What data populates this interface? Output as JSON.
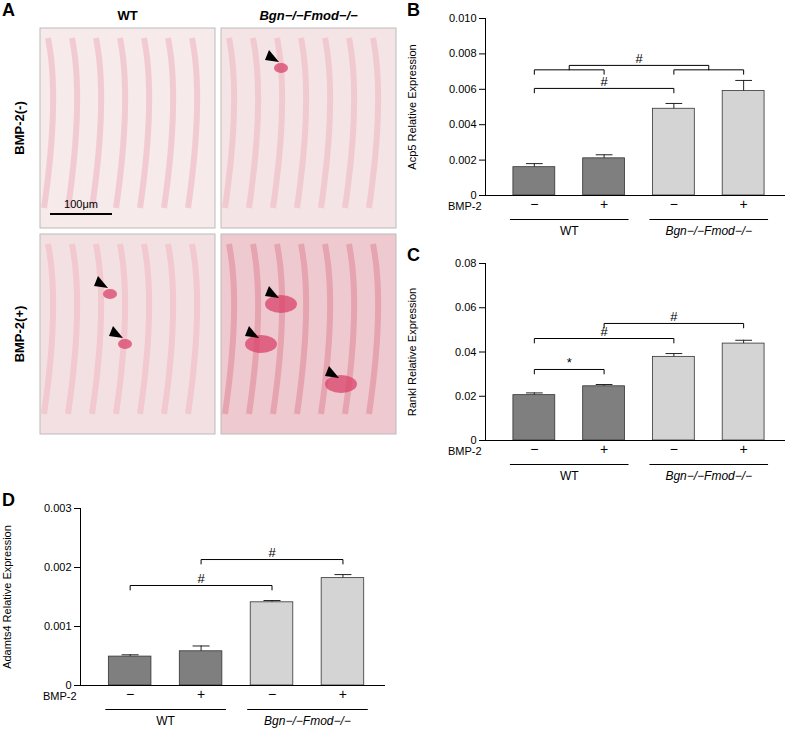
{
  "image_panel": {
    "panel": "A",
    "columns": [
      "WT",
      "Bgn−/−Fmod−/−"
    ],
    "rows": [
      "BMP-2(-)",
      "BMP-2(+)"
    ],
    "scale_bar": "100μm"
  },
  "chart_data": [
    {
      "type": "bar",
      "panel": "B",
      "y_label": "Acp5 Relative Expression",
      "x_label": "BMP-2",
      "categories": [
        "−",
        "+",
        "−",
        "+"
      ],
      "groups": [
        {
          "name": "WT",
          "indices": [
            0,
            1
          ]
        },
        {
          "name": "Bgn−/−Fmod−/−",
          "indices": [
            2,
            3
          ]
        }
      ],
      "values": [
        0.0016,
        0.0021,
        0.0049,
        0.0059
      ],
      "errors": [
        0.0002,
        0.0002,
        0.0003,
        0.0006
      ],
      "colors": [
        "#7f7f7f",
        "#7f7f7f",
        "#d4d4d4",
        "#d4d4d4"
      ],
      "significance": [
        {
          "from": [
            0
          ],
          "to": [
            2
          ],
          "label": "#"
        },
        {
          "from": [
            0,
            1
          ],
          "to": [
            2,
            3
          ],
          "label": "#"
        }
      ],
      "ylim": [
        0,
        0.01
      ],
      "yticks": [
        0,
        0.002,
        0.004,
        0.006,
        0.008,
        {
          "value": 0.01,
          "label": "0.010"
        }
      ]
    },
    {
      "type": "bar",
      "panel": "C",
      "y_label": "Rankl Relative Expression",
      "x_label": "BMP-2",
      "categories": [
        "−",
        "+",
        "−",
        "+"
      ],
      "groups": [
        {
          "name": "WT",
          "indices": [
            0,
            1
          ]
        },
        {
          "name": "Bgn−/−Fmod−/−",
          "indices": [
            2,
            3
          ]
        }
      ],
      "values": [
        0.0205,
        0.0245,
        0.0378,
        0.0438
      ],
      "errors": [
        0.001,
        0.0008,
        0.0015,
        0.0015
      ],
      "colors": [
        "#7f7f7f",
        "#7f7f7f",
        "#d4d4d4",
        "#d4d4d4"
      ],
      "significance": [
        {
          "from": [
            0
          ],
          "to": [
            1
          ],
          "label": "*"
        },
        {
          "from": [
            0
          ],
          "to": [
            2
          ],
          "label": "#"
        },
        {
          "from": [
            1
          ],
          "to": [
            3
          ],
          "label": "#"
        }
      ],
      "ylim": [
        0,
        0.08
      ],
      "yticks": [
        0,
        0.02,
        0.04,
        0.06,
        0.08
      ]
    },
    {
      "type": "bar",
      "panel": "D",
      "y_label": "Adamts4 Relative Expression",
      "x_label": "BMP-2",
      "categories": [
        "−",
        "+",
        "−",
        "+"
      ],
      "groups": [
        {
          "name": "WT",
          "indices": [
            0,
            1
          ]
        },
        {
          "name": "Bgn−/−Fmod−/−",
          "indices": [
            2,
            3
          ]
        }
      ],
      "values": [
        0.00049,
        0.00058,
        0.00141,
        0.00182
      ],
      "errors": [
        3e-05,
        9e-05,
        3e-05,
        6e-05
      ],
      "colors": [
        "#7f7f7f",
        "#7f7f7f",
        "#d4d4d4",
        "#d4d4d4"
      ],
      "significance": [
        {
          "from": [
            0
          ],
          "to": [
            2
          ],
          "label": "#"
        },
        {
          "from": [
            1
          ],
          "to": [
            3
          ],
          "label": "#"
        }
      ],
      "ylim": [
        0,
        0.003
      ],
      "yticks": [
        0,
        0.001,
        0.002,
        0.003
      ]
    }
  ]
}
